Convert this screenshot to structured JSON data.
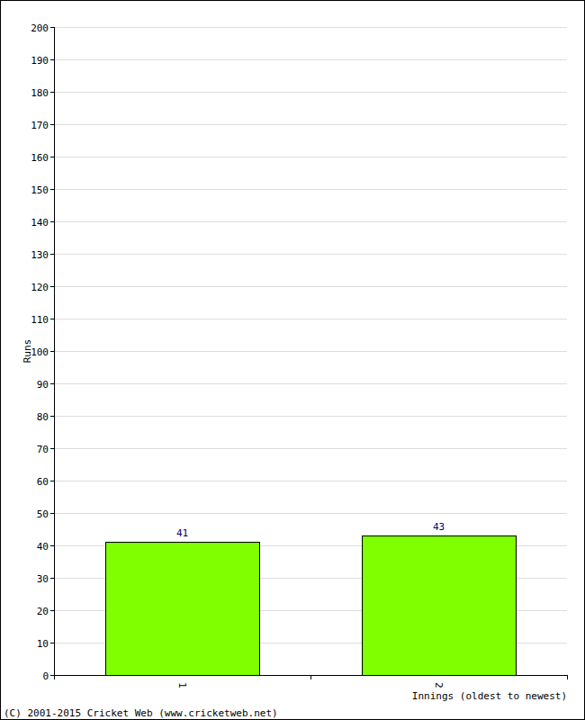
{
  "chart_data": {
    "type": "bar",
    "x_label": "Innings (oldest to newest)",
    "y_label": "Runs",
    "annotations": [
      "(C) 2001-2015 Cricket Web (www.cricketweb.net)"
    ],
    "categories": [
      "1",
      "2"
    ],
    "values": [
      41,
      43
    ],
    "color": "#7fff00",
    "ylim": [
      0,
      200
    ],
    "yticks": [
      0,
      10,
      20,
      30,
      40,
      50,
      60,
      70,
      80,
      90,
      100,
      110,
      120,
      130,
      140,
      150,
      160,
      170,
      180,
      190,
      200
    ],
    "grid": true,
    "data_labels": true
  }
}
